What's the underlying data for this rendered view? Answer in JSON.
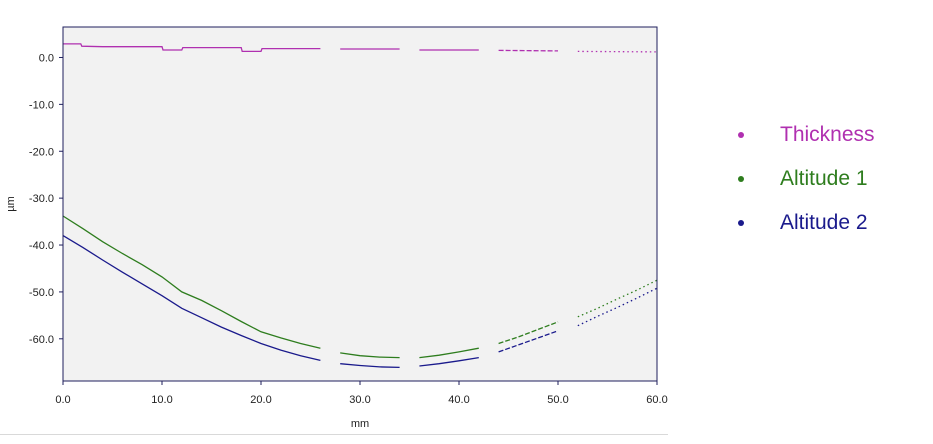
{
  "chart_data": {
    "type": "line",
    "xlabel": "mm",
    "ylabel": "µm",
    "xlim": [
      0,
      60
    ],
    "ylim": [
      -69,
      6.5
    ],
    "xticks": [
      "0.0",
      "10.0",
      "20.0",
      "30.0",
      "40.0",
      "50.0",
      "60.0"
    ],
    "xtick_values": [
      0,
      10,
      20,
      30,
      40,
      50,
      60
    ],
    "yticks": [
      "0.0",
      "-10.0",
      "-20.0",
      "-30.0",
      "-40.0",
      "-50.0",
      "-60.0"
    ],
    "ytick_values": [
      0,
      -10,
      -20,
      -30,
      -40,
      -50,
      -60
    ],
    "plot_background": "#f2f2f2",
    "legend_position": "right",
    "series": [
      {
        "name": "Thickness",
        "color": "#b030b0",
        "segments": [
          {
            "style": "solid",
            "points": [
              [
                0,
                2.9
              ],
              [
                1.8,
                2.9
              ],
              [
                1.9,
                2.4
              ],
              [
                4,
                2.3
              ],
              [
                10,
                2.3
              ],
              [
                10.1,
                1.6
              ],
              [
                12,
                1.6
              ],
              [
                12.1,
                2.1
              ],
              [
                18,
                2.1
              ],
              [
                18.1,
                1.3
              ],
              [
                20,
                1.3
              ],
              [
                20.1,
                1.9
              ],
              [
                26,
                1.9
              ]
            ]
          },
          {
            "style": "solid",
            "points": [
              [
                28,
                1.8
              ],
              [
                34,
                1.8
              ]
            ]
          },
          {
            "style": "solid",
            "points": [
              [
                36,
                1.6
              ],
              [
                42,
                1.6
              ]
            ]
          },
          {
            "style": "dashed",
            "points": [
              [
                44,
                1.5
              ],
              [
                50,
                1.4
              ]
            ]
          },
          {
            "style": "dotted",
            "points": [
              [
                52,
                1.3
              ],
              [
                60,
                1.2
              ]
            ]
          }
        ]
      },
      {
        "name": "Altitude 1",
        "color": "#2e7d1e",
        "segments": [
          {
            "style": "solid",
            "points": [
              [
                0,
                -33.8
              ],
              [
                2,
                -36.5
              ],
              [
                4,
                -39.3
              ],
              [
                6,
                -41.8
              ],
              [
                8,
                -44.2
              ],
              [
                10,
                -46.8
              ],
              [
                12,
                -50.0
              ],
              [
                14,
                -51.8
              ],
              [
                16,
                -54.0
              ],
              [
                18,
                -56.3
              ],
              [
                20,
                -58.5
              ],
              [
                22,
                -59.8
              ],
              [
                24,
                -61.0
              ],
              [
                26,
                -62.0
              ]
            ]
          },
          {
            "style": "solid",
            "points": [
              [
                28,
                -63.0
              ],
              [
                30,
                -63.6
              ],
              [
                32,
                -63.9
              ],
              [
                34,
                -64.0
              ]
            ]
          },
          {
            "style": "solid",
            "points": [
              [
                36,
                -64.0
              ],
              [
                38,
                -63.5
              ],
              [
                40,
                -62.8
              ],
              [
                42,
                -62.0
              ]
            ]
          },
          {
            "style": "dashed",
            "points": [
              [
                44,
                -61.0
              ],
              [
                46,
                -59.6
              ],
              [
                48,
                -58.0
              ],
              [
                50,
                -56.4
              ]
            ]
          },
          {
            "style": "dotted",
            "points": [
              [
                52,
                -55.3
              ],
              [
                54,
                -53.5
              ],
              [
                56,
                -51.5
              ],
              [
                58,
                -49.6
              ],
              [
                60,
                -47.5
              ]
            ]
          }
        ]
      },
      {
        "name": "Altitude 2",
        "color": "#1a1a8c",
        "segments": [
          {
            "style": "solid",
            "points": [
              [
                0,
                -38.0
              ],
              [
                2,
                -40.5
              ],
              [
                4,
                -43.2
              ],
              [
                6,
                -45.8
              ],
              [
                8,
                -48.3
              ],
              [
                10,
                -50.8
              ],
              [
                12,
                -53.5
              ],
              [
                14,
                -55.5
              ],
              [
                16,
                -57.5
              ],
              [
                18,
                -59.3
              ],
              [
                20,
                -61.0
              ],
              [
                22,
                -62.4
              ],
              [
                24,
                -63.6
              ],
              [
                26,
                -64.6
              ]
            ]
          },
          {
            "style": "solid",
            "points": [
              [
                28,
                -65.3
              ],
              [
                30,
                -65.7
              ],
              [
                32,
                -66.0
              ],
              [
                34,
                -66.1
              ]
            ]
          },
          {
            "style": "solid",
            "points": [
              [
                36,
                -65.8
              ],
              [
                38,
                -65.3
              ],
              [
                40,
                -64.7
              ],
              [
                42,
                -64.0
              ]
            ]
          },
          {
            "style": "dashed",
            "points": [
              [
                44,
                -62.8
              ],
              [
                46,
                -61.3
              ],
              [
                48,
                -59.8
              ],
              [
                50,
                -58.3
              ]
            ]
          },
          {
            "style": "dotted",
            "points": [
              [
                52,
                -57.2
              ],
              [
                54,
                -55.2
              ],
              [
                56,
                -53.3
              ],
              [
                58,
                -51.3
              ],
              [
                60,
                -49.2
              ]
            ]
          }
        ]
      }
    ]
  },
  "legend": {
    "items": [
      {
        "label": "Thickness",
        "color": "#b030b0"
      },
      {
        "label": "Altitude 1",
        "color": "#2e7d1e"
      },
      {
        "label": "Altitude 2",
        "color": "#1a1a8c"
      }
    ]
  }
}
